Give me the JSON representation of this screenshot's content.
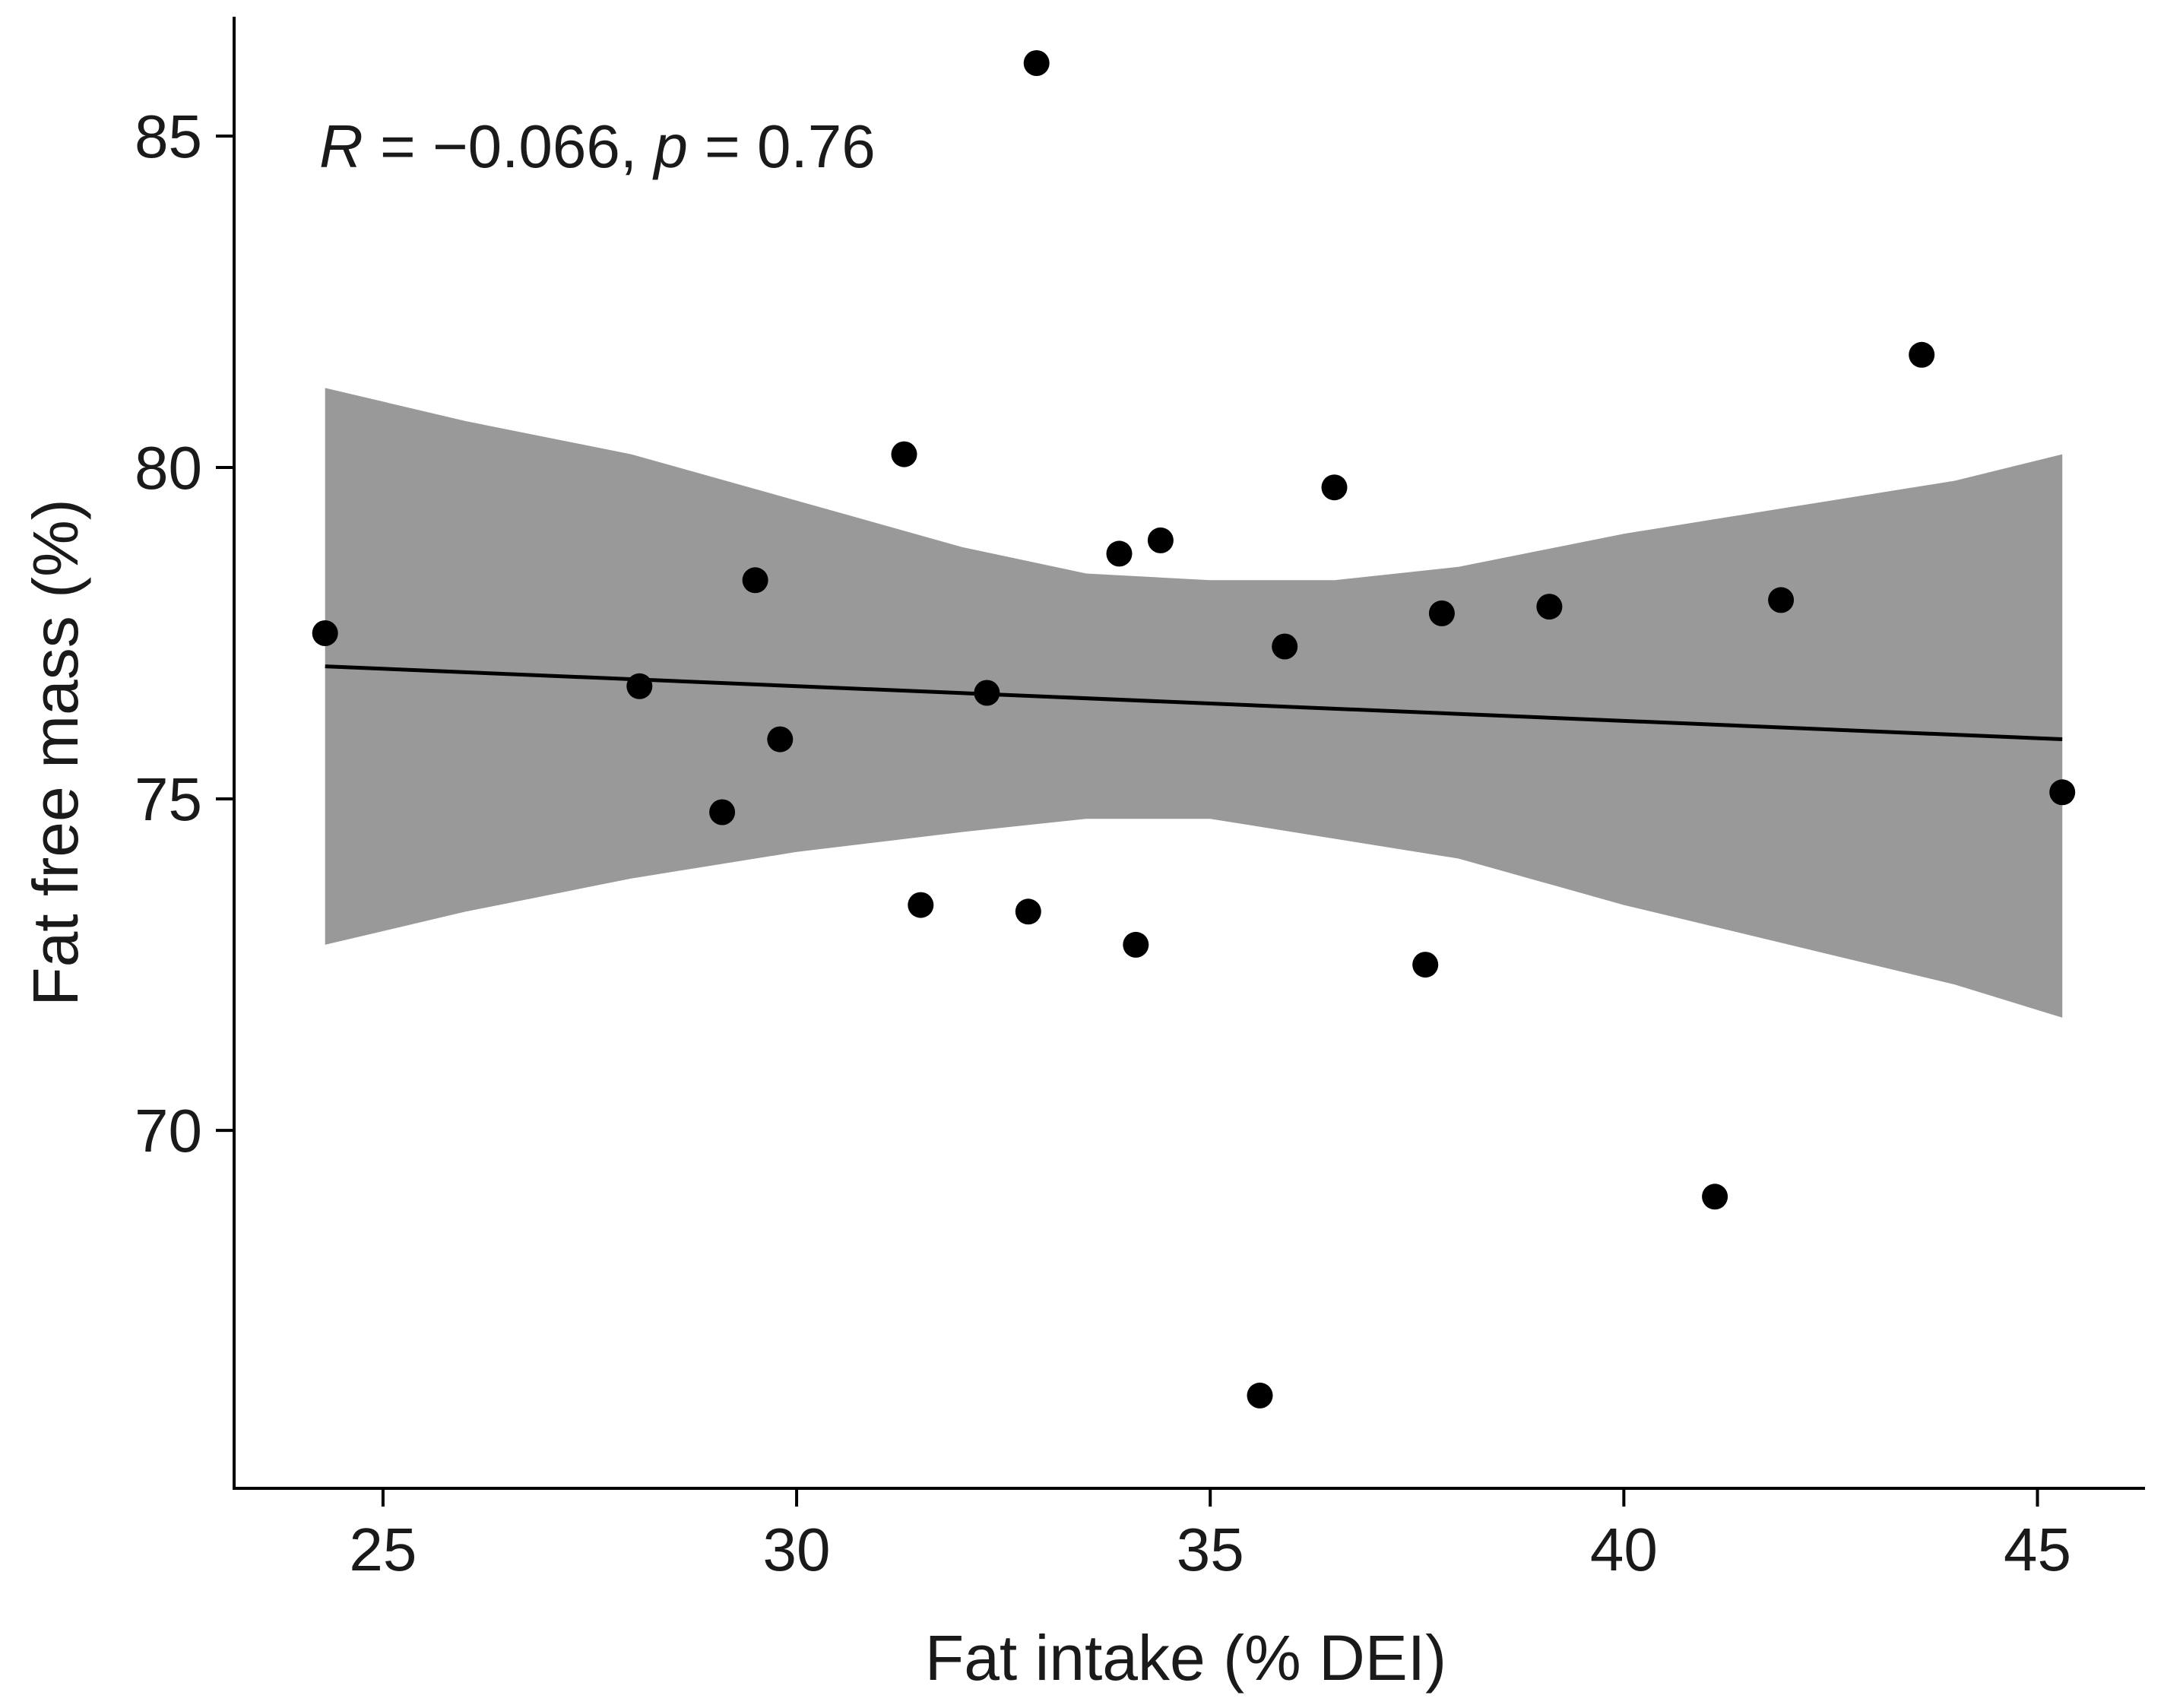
{
  "chart_data": {
    "type": "scatter",
    "title": "",
    "xlabel": "Fat intake (% DEI)",
    "ylabel": "Fat free mass (%)",
    "xlim": [
      23.2,
      46.3
    ],
    "ylim": [
      64.6,
      86.8
    ],
    "x_ticks": [
      25,
      30,
      35,
      40,
      45
    ],
    "y_ticks": [
      70,
      75,
      80,
      85
    ],
    "x_tick_labels": [
      "25",
      "30",
      "35",
      "40",
      "45"
    ],
    "y_tick_labels": [
      "70",
      "75",
      "80",
      "85"
    ],
    "annotation": {
      "r_symbol": "R",
      "r_text": " = −0.066, ",
      "p_symbol": "p",
      "p_text": " = 0.76"
    },
    "points": [
      {
        "x": 24.3,
        "y": 77.5
      },
      {
        "x": 28.1,
        "y": 76.7
      },
      {
        "x": 29.1,
        "y": 74.8
      },
      {
        "x": 29.5,
        "y": 78.3
      },
      {
        "x": 29.8,
        "y": 75.9
      },
      {
        "x": 31.3,
        "y": 80.2
      },
      {
        "x": 31.5,
        "y": 73.4
      },
      {
        "x": 32.3,
        "y": 76.6
      },
      {
        "x": 32.8,
        "y": 73.3
      },
      {
        "x": 32.9,
        "y": 86.1
      },
      {
        "x": 33.9,
        "y": 78.7
      },
      {
        "x": 34.1,
        "y": 72.8
      },
      {
        "x": 34.4,
        "y": 78.9
      },
      {
        "x": 35.6,
        "y": 66.0
      },
      {
        "x": 35.9,
        "y": 77.3
      },
      {
        "x": 36.5,
        "y": 79.7
      },
      {
        "x": 37.6,
        "y": 72.5
      },
      {
        "x": 37.8,
        "y": 77.8
      },
      {
        "x": 39.1,
        "y": 77.9
      },
      {
        "x": 41.1,
        "y": 69.0
      },
      {
        "x": 41.9,
        "y": 78.0
      },
      {
        "x": 43.6,
        "y": 81.7
      },
      {
        "x": 45.3,
        "y": 75.1
      }
    ],
    "regression": {
      "line_color": "#000000",
      "band_color": "#999999",
      "line": [
        {
          "x": 24.3,
          "y": 77.0
        },
        {
          "x": 45.3,
          "y": 75.9
        }
      ],
      "ci_upper": [
        {
          "x": 24.3,
          "y": 81.2
        },
        {
          "x": 26.0,
          "y": 80.7
        },
        {
          "x": 28.0,
          "y": 80.2
        },
        {
          "x": 30.0,
          "y": 79.5
        },
        {
          "x": 32.0,
          "y": 78.8
        },
        {
          "x": 33.5,
          "y": 78.4
        },
        {
          "x": 35.0,
          "y": 78.3
        },
        {
          "x": 36.5,
          "y": 78.3
        },
        {
          "x": 38.0,
          "y": 78.5
        },
        {
          "x": 40.0,
          "y": 79.0
        },
        {
          "x": 42.0,
          "y": 79.4
        },
        {
          "x": 44.0,
          "y": 79.8
        },
        {
          "x": 45.3,
          "y": 80.2
        }
      ],
      "ci_lower": [
        {
          "x": 24.3,
          "y": 72.8
        },
        {
          "x": 26.0,
          "y": 73.3
        },
        {
          "x": 28.0,
          "y": 73.8
        },
        {
          "x": 30.0,
          "y": 74.2
        },
        {
          "x": 32.0,
          "y": 74.5
        },
        {
          "x": 33.5,
          "y": 74.7
        },
        {
          "x": 35.0,
          "y": 74.7
        },
        {
          "x": 36.5,
          "y": 74.4
        },
        {
          "x": 38.0,
          "y": 74.1
        },
        {
          "x": 40.0,
          "y": 73.4
        },
        {
          "x": 42.0,
          "y": 72.8
        },
        {
          "x": 44.0,
          "y": 72.2
        },
        {
          "x": 45.3,
          "y": 71.7
        }
      ]
    },
    "point_color": "#000000"
  }
}
